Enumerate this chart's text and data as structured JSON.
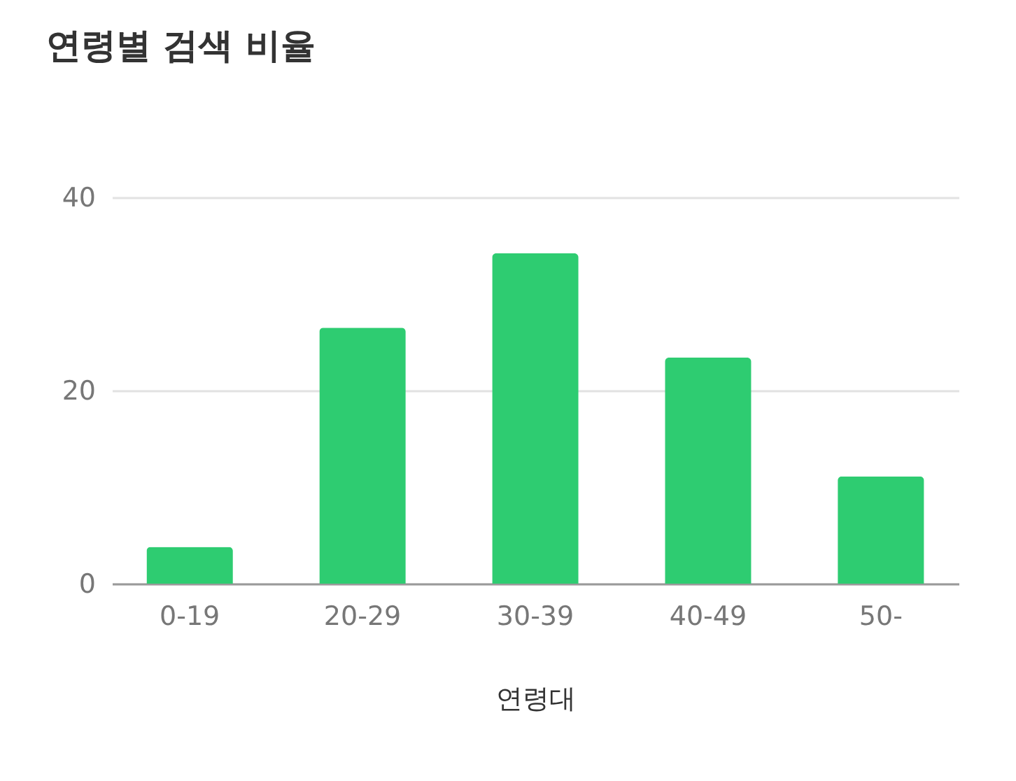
{
  "chart_data": {
    "type": "bar",
    "title": "연령별 검색 비율",
    "xlabel": "연령대",
    "categories": [
      "0-19",
      "20-29",
      "30-39",
      "40-49",
      "50-"
    ],
    "values": [
      3.8,
      26.5,
      34.2,
      23.4,
      11.1
    ],
    "color": "#2ecc71",
    "ylim": [
      0,
      40
    ],
    "yticks": [
      0,
      20,
      40
    ],
    "grid": "y"
  }
}
